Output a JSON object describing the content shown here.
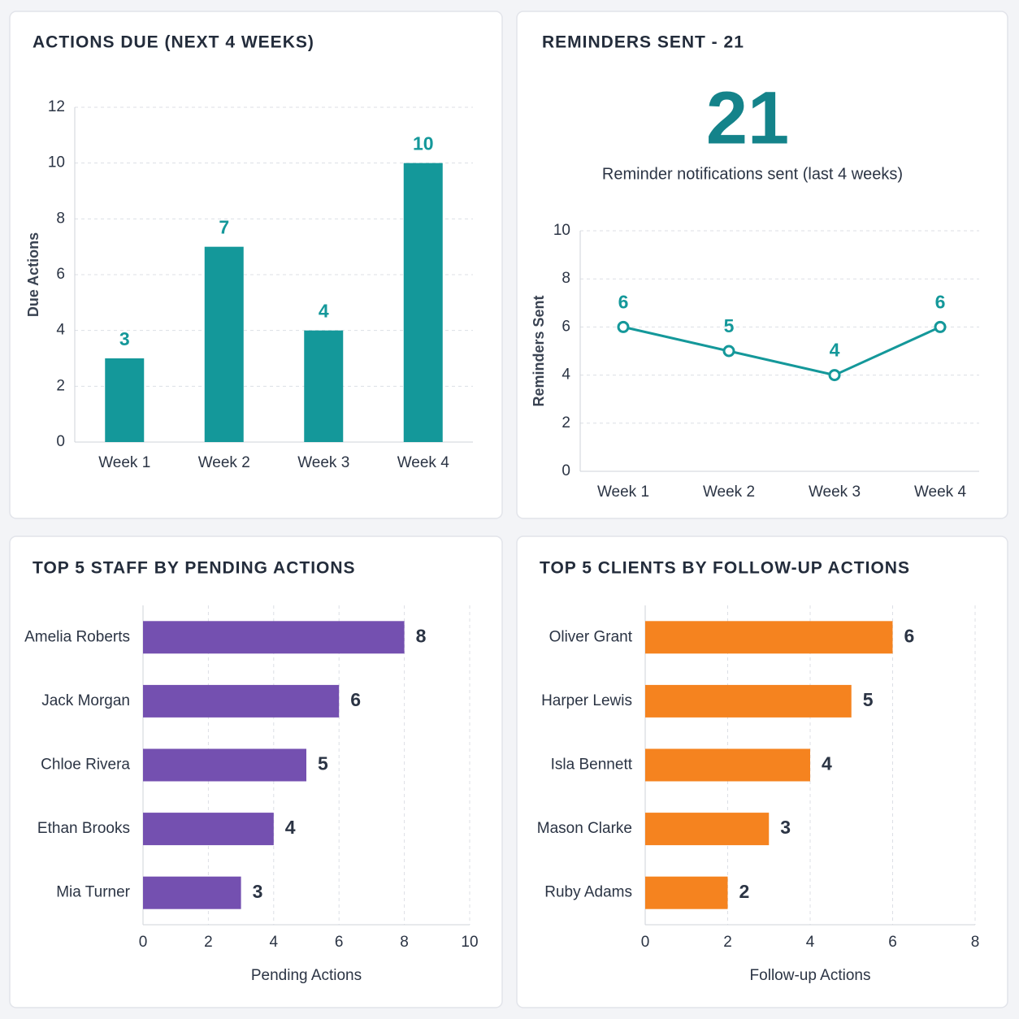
{
  "chart_data": [
    {
      "type": "bar",
      "title": "ACTIONS DUE (NEXT 4 WEEKS)",
      "y_label": "Due Actions",
      "categories": [
        "Week 1",
        "Week 2",
        "Week 3",
        "Week 4"
      ],
      "values": [
        3,
        7,
        4,
        10
      ],
      "color": "#14989a",
      "ylim": [
        0,
        12
      ],
      "yticks": [
        0,
        2,
        4,
        6,
        8,
        10,
        12
      ],
      "grid": true
    },
    {
      "type": "line",
      "title": "REMINDERS SENT - 21",
      "kpi_value": 21,
      "kpi_label": "Reminder notifications sent (last 4 weeks)",
      "y_label": "Reminders Sent",
      "categories": [
        "Week 1",
        "Week 2",
        "Week 3",
        "Week 4"
      ],
      "values": [
        6,
        5,
        4,
        6
      ],
      "color": "#14989a",
      "ylim": [
        0,
        10
      ],
      "yticks": [
        0,
        2,
        4,
        6,
        8,
        10
      ],
      "grid": true
    },
    {
      "type": "hbar",
      "title": "TOP 5 STAFF BY PENDING ACTIONS",
      "x_label": "Pending Actions",
      "categories": [
        "Amelia Roberts",
        "Jack Morgan",
        "Chloe Rivera",
        "Ethan Brooks",
        "Mia Turner"
      ],
      "values": [
        8,
        6,
        5,
        4,
        3
      ],
      "color": "#7450b0",
      "xlim": [
        0,
        10
      ],
      "xticks": [
        0,
        2,
        4,
        6,
        8,
        10
      ],
      "grid": true
    },
    {
      "type": "hbar",
      "title": "TOP 5 CLIENTS BY FOLLOW-UP ACTIONS",
      "x_label": "Follow-up Actions",
      "categories": [
        "Oliver Grant",
        "Harper Lewis",
        "Isla Bennett",
        "Mason Clarke",
        "Ruby Adams"
      ],
      "values": [
        6,
        5,
        4,
        3,
        2
      ],
      "color": "#f5831f",
      "xlim": [
        0,
        8
      ],
      "xticks": [
        0,
        2,
        4,
        6,
        8
      ],
      "grid": true
    }
  ]
}
